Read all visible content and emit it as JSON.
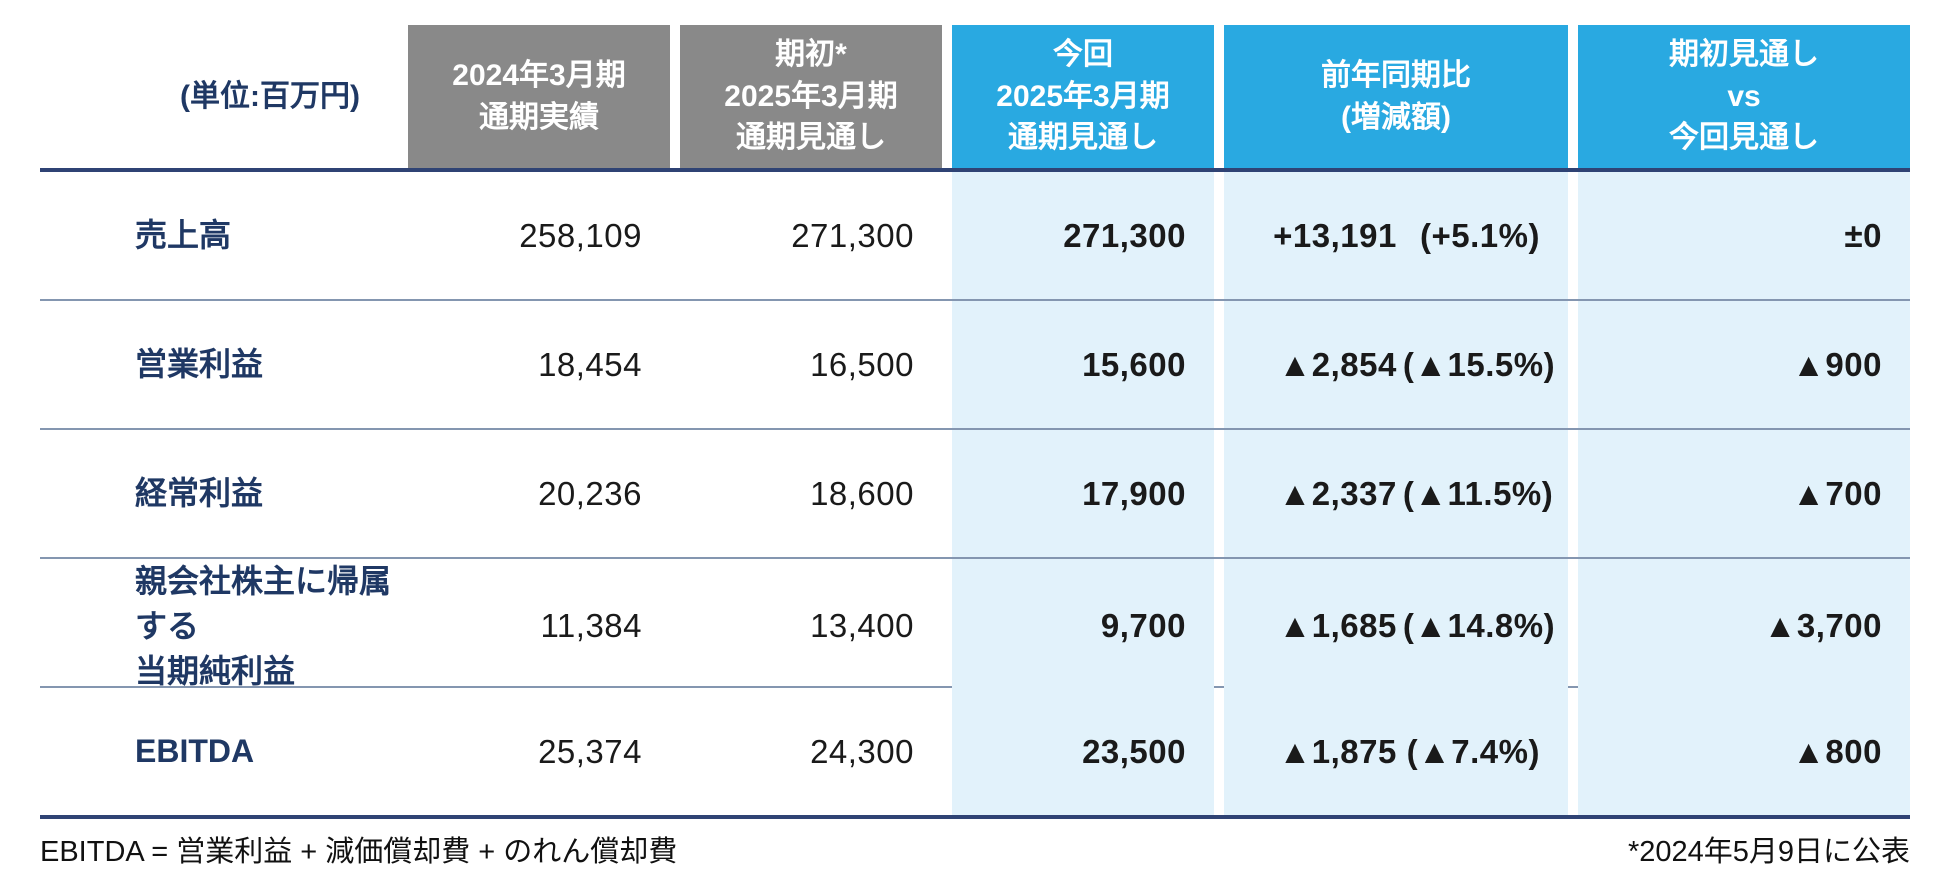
{
  "unit_label": "(単位:百万円)",
  "columns": [
    {
      "label": "2024年3月期\n通期実績"
    },
    {
      "label": "期初*\n2025年3月期\n通期見通し"
    },
    {
      "label": "今回\n2025年3月期\n通期見通し"
    },
    {
      "label": "前年同期比\n(増減額)"
    },
    {
      "label": "期初見通し\nvs\n今回見通し"
    }
  ],
  "rows": [
    {
      "label": "売上高",
      "actual": "258,109",
      "initial_forecast": "271,300",
      "current_forecast": "271,300",
      "yoy_amount": "+13,191",
      "yoy_pct": "(+5.1%)",
      "vs_initial": "±0"
    },
    {
      "label": "営業利益",
      "actual": "18,454",
      "initial_forecast": "16,500",
      "current_forecast": "15,600",
      "yoy_amount": "▲2,854",
      "yoy_pct": "(▲15.5%)",
      "vs_initial": "▲900"
    },
    {
      "label": "経常利益",
      "actual": "20,236",
      "initial_forecast": "18,600",
      "current_forecast": "17,900",
      "yoy_amount": "▲2,337",
      "yoy_pct": "(▲11.5%)",
      "vs_initial": "▲700"
    },
    {
      "label": "親会社株主に帰属する\n当期純利益",
      "actual": "11,384",
      "initial_forecast": "13,400",
      "current_forecast": "9,700",
      "yoy_amount": "▲1,685",
      "yoy_pct": "(▲14.8%)",
      "vs_initial": "▲3,700"
    },
    {
      "label": "EBITDA",
      "actual": "25,374",
      "initial_forecast": "24,300",
      "current_forecast": "23,500",
      "yoy_amount": "▲1,875",
      "yoy_pct": "(▲7.4%)",
      "vs_initial": "▲800"
    }
  ],
  "footnotes": {
    "left": "EBITDA = 営業利益 + 減価償却費 + のれん償却費",
    "right": "*2024年5月9日に公表"
  },
  "colors": {
    "header_gray": "#898989",
    "header_blue": "#29A9E1",
    "highlight_cell_blue": "#E2F2FB",
    "navy_text": "#1F3864",
    "table_border_navy": "#2F4374",
    "row_divider": "#8496B0"
  }
}
